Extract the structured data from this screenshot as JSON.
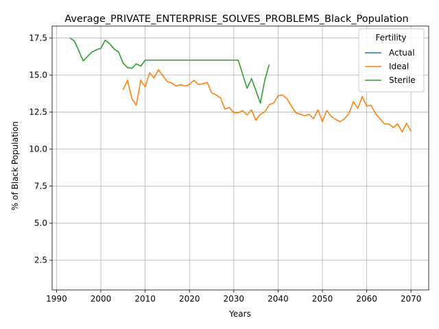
{
  "chart_data": {
    "type": "line",
    "title": "Average_PRIVATE_ENTERPRISE_SOLVES_PROBLEMS_Black_Population",
    "xlabel": "Years",
    "ylabel": "% of Black Population",
    "xlim": [
      1989,
      2074
    ],
    "ylim": [
      0.5,
      18.3
    ],
    "xticks": [
      1990,
      2000,
      2010,
      2020,
      2030,
      2040,
      2050,
      2060,
      2070
    ],
    "xtick_labels": [
      "1990",
      "2000",
      "2010",
      "2020",
      "2030",
      "2040",
      "2050",
      "2060",
      "2070"
    ],
    "yticks": [
      2.5,
      5.0,
      7.5,
      10.0,
      12.5,
      15.0,
      17.5
    ],
    "ytick_labels": [
      "2.5",
      "5.0",
      "7.5",
      "10.0",
      "12.5",
      "15.0",
      "17.5"
    ],
    "grid": true,
    "legend": {
      "title": "Fertility",
      "placement": "top-right",
      "entries": [
        "Actual",
        "Ideal",
        "Sterile"
      ]
    },
    "series": [
      {
        "name": "Actual",
        "color": "#1f77b4",
        "x": [],
        "y": []
      },
      {
        "name": "Ideal",
        "color": "#ff7f0e",
        "x": [
          2005,
          2006,
          2007,
          2008,
          2009,
          2010,
          2011,
          2012,
          2013,
          2014,
          2015,
          2016,
          2017,
          2018,
          2019,
          2020,
          2021,
          2022,
          2023,
          2024,
          2025,
          2026,
          2027,
          2028,
          2029,
          2030,
          2031,
          2032,
          2033,
          2034,
          2035,
          2036,
          2037,
          2038,
          2039,
          2040,
          2041,
          2042,
          2043,
          2044,
          2045,
          2046,
          2047,
          2048,
          2049,
          2050,
          2051,
          2052,
          2053,
          2054,
          2055,
          2056,
          2057,
          2058,
          2059,
          2060,
          2061,
          2062,
          2063,
          2064,
          2065,
          2066,
          2067,
          2068,
          2069,
          2070
        ],
        "y": [
          14.0,
          14.65,
          13.4,
          12.95,
          14.65,
          14.2,
          15.15,
          14.8,
          15.35,
          14.95,
          14.55,
          14.45,
          14.25,
          14.35,
          14.25,
          14.35,
          14.65,
          14.35,
          14.4,
          14.5,
          13.8,
          13.65,
          13.45,
          12.7,
          12.8,
          12.45,
          12.45,
          12.6,
          12.3,
          12.65,
          11.95,
          12.35,
          12.5,
          13.0,
          13.1,
          13.6,
          13.65,
          13.4,
          12.9,
          12.45,
          12.35,
          12.25,
          12.35,
          12.05,
          12.65,
          11.85,
          12.6,
          12.2,
          12.0,
          11.85,
          12.05,
          12.4,
          13.2,
          12.75,
          13.55,
          12.9,
          12.95,
          12.4,
          12.05,
          11.7,
          11.7,
          11.45,
          11.7,
          11.15,
          11.75,
          11.2
        ]
      },
      {
        "name": "Sterile",
        "color": "#2ca02c",
        "x": [
          1993,
          1994,
          1995,
          1996,
          1997,
          1998,
          1999,
          2000,
          2001,
          2002,
          2003,
          2004,
          2005,
          2006,
          2007,
          2008,
          2009,
          2010,
          2011,
          2012,
          2013,
          2014,
          2015,
          2016,
          2017,
          2018,
          2019,
          2020,
          2021,
          2022,
          2023,
          2024,
          2025,
          2026,
          2027,
          2028,
          2029,
          2030,
          2031,
          2032,
          2033,
          2034,
          2035,
          2036,
          2037,
          2038
        ],
        "y": [
          17.5,
          17.3,
          16.65,
          15.95,
          16.25,
          16.55,
          16.7,
          16.8,
          17.35,
          17.1,
          16.75,
          16.55,
          15.8,
          15.5,
          15.45,
          15.75,
          15.6,
          16.0,
          16.0,
          16.0,
          16.0,
          16.0,
          16.0,
          16.0,
          16.0,
          16.0,
          16.0,
          16.0,
          16.0,
          16.0,
          16.0,
          16.0,
          16.0,
          16.0,
          16.0,
          16.0,
          16.0,
          16.0,
          16.0,
          15.05,
          14.1,
          14.75,
          13.95,
          13.1,
          14.65,
          15.7
        ]
      }
    ]
  }
}
